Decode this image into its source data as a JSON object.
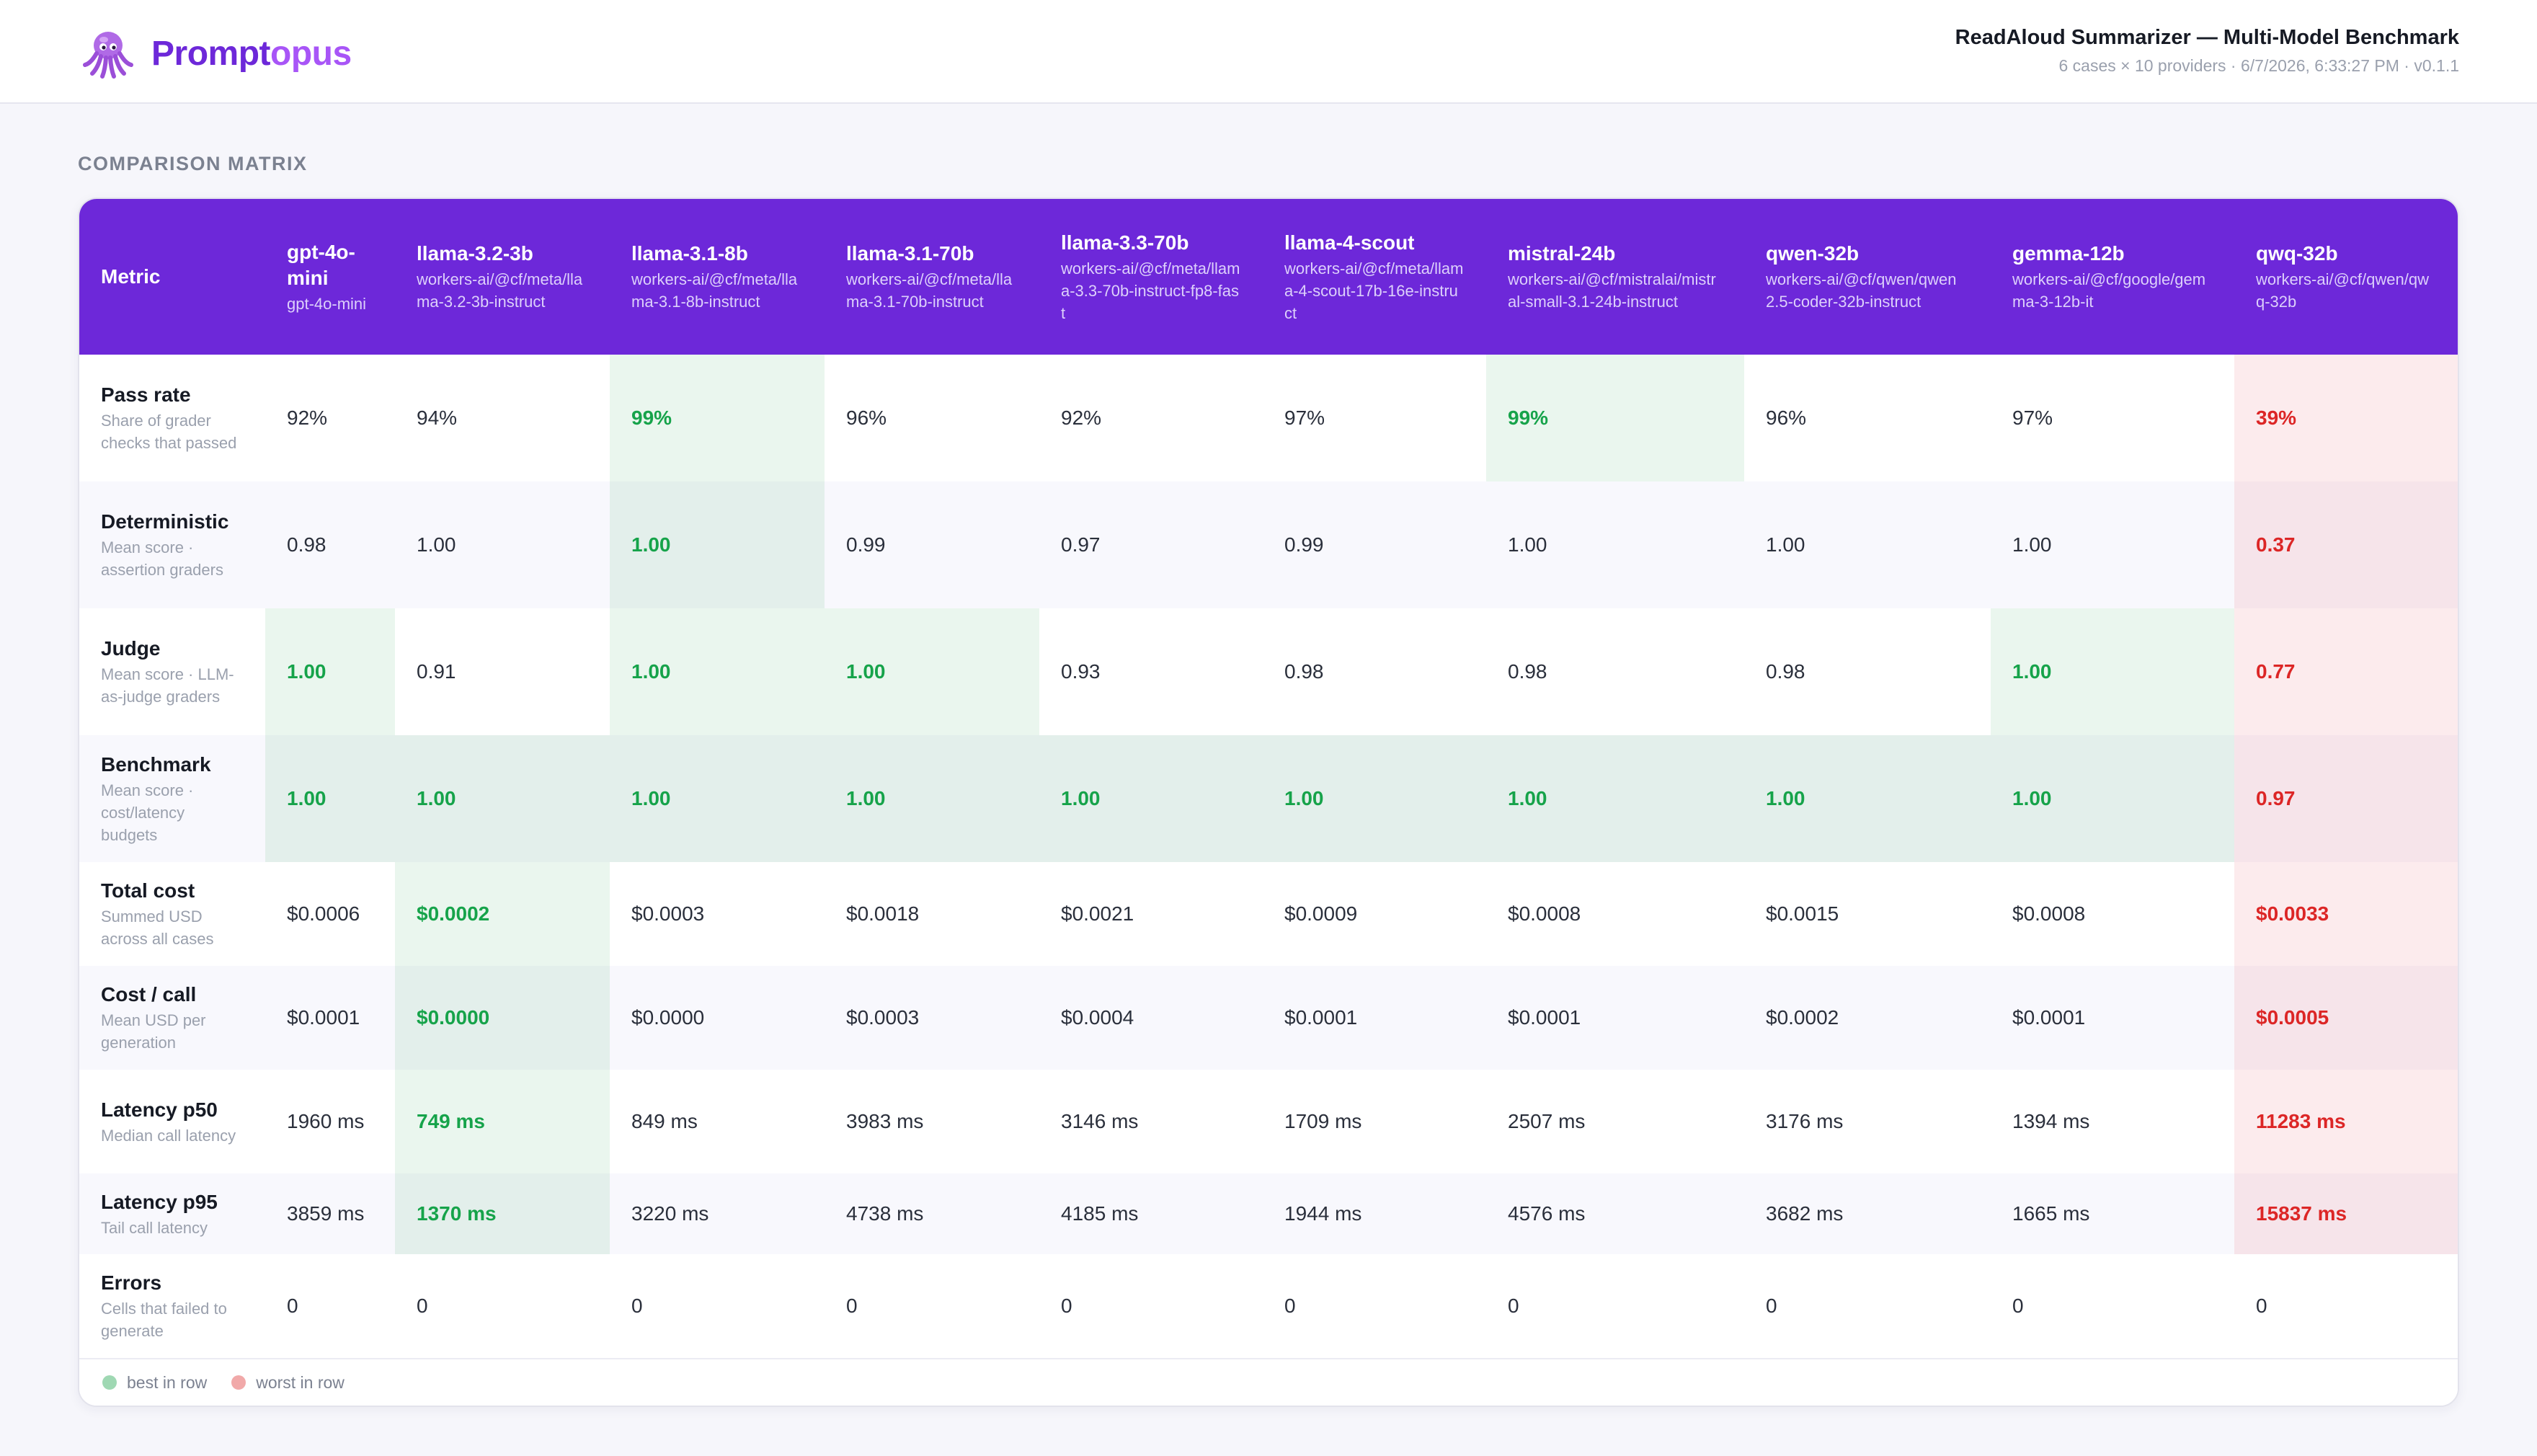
{
  "app": {
    "brand_part1": "Prompt",
    "brand_part2": "opus",
    "logo_icon": "octopus-icon",
    "report_title": "ReadAloud Summarizer — Multi-Model Benchmark",
    "report_meta": "6 cases × 10 providers · 6/7/2026, 6:33:27 PM · v0.1.1"
  },
  "section_title": "COMPARISON MATRIX",
  "matrix": {
    "metric_header": "Metric",
    "columns": [
      {
        "name": "gpt-4o-mini",
        "model": "gpt-4o-mini"
      },
      {
        "name": "llama-3.2-3b",
        "model": "workers-ai/@cf/meta/llama-3.2-3b-instruct"
      },
      {
        "name": "llama-3.1-8b",
        "model": "workers-ai/@cf/meta/llama-3.1-8b-instruct"
      },
      {
        "name": "llama-3.1-70b",
        "model": "workers-ai/@cf/meta/llama-3.1-70b-instruct"
      },
      {
        "name": "llama-3.3-70b",
        "model": "workers-ai/@cf/meta/llama-3.3-70b-instruct-fp8-fast"
      },
      {
        "name": "llama-4-scout",
        "model": "workers-ai/@cf/meta/llama-4-scout-17b-16e-instruct"
      },
      {
        "name": "mistral-24b",
        "model": "workers-ai/@cf/mistralai/mistral-small-3.1-24b-instruct"
      },
      {
        "name": "qwen-32b",
        "model": "workers-ai/@cf/qwen/qwen2.5-coder-32b-instruct"
      },
      {
        "name": "gemma-12b",
        "model": "workers-ai/@cf/google/gemma-3-12b-it"
      },
      {
        "name": "qwq-32b",
        "model": "workers-ai/@cf/qwen/qwq-32b"
      }
    ],
    "rows": [
      {
        "label": "Pass rate",
        "desc": "Share of grader checks that passed",
        "values": [
          "92%",
          "94%",
          "99%",
          "96%",
          "92%",
          "97%",
          "99%",
          "96%",
          "97%",
          "39%"
        ],
        "best": [
          2,
          6
        ],
        "worst": [
          9
        ]
      },
      {
        "label": "Deterministic",
        "desc": "Mean score · assertion graders",
        "values": [
          "0.98",
          "1.00",
          "1.00",
          "0.99",
          "0.97",
          "0.99",
          "1.00",
          "1.00",
          "1.00",
          "0.37"
        ],
        "best": [
          2
        ],
        "worst": [
          9
        ]
      },
      {
        "label": "Judge",
        "desc": "Mean score · LLM-as-judge graders",
        "values": [
          "1.00",
          "0.91",
          "1.00",
          "1.00",
          "0.93",
          "0.98",
          "0.98",
          "0.98",
          "1.00",
          "0.77"
        ],
        "best": [
          0,
          2,
          3,
          8
        ],
        "worst": [
          9
        ]
      },
      {
        "label": "Benchmark",
        "desc": "Mean score · cost/latency budgets",
        "values": [
          "1.00",
          "1.00",
          "1.00",
          "1.00",
          "1.00",
          "1.00",
          "1.00",
          "1.00",
          "1.00",
          "0.97"
        ],
        "best": [
          0,
          1,
          2,
          3,
          4,
          5,
          6,
          7,
          8
        ],
        "worst": [
          9
        ]
      },
      {
        "label": "Total cost",
        "desc": "Summed USD across all cases",
        "values": [
          "$0.0006",
          "$0.0002",
          "$0.0003",
          "$0.0018",
          "$0.0021",
          "$0.0009",
          "$0.0008",
          "$0.0015",
          "$0.0008",
          "$0.0033"
        ],
        "best": [
          1
        ],
        "worst": [
          9
        ]
      },
      {
        "label": "Cost / call",
        "desc": "Mean USD per generation",
        "values": [
          "$0.0001",
          "$0.0000",
          "$0.0000",
          "$0.0003",
          "$0.0004",
          "$0.0001",
          "$0.0001",
          "$0.0002",
          "$0.0001",
          "$0.0005"
        ],
        "best": [
          1
        ],
        "worst": [
          9
        ]
      },
      {
        "label": "Latency p50",
        "desc": "Median call latency",
        "values": [
          "1960 ms",
          "749 ms",
          "849 ms",
          "3983 ms",
          "3146 ms",
          "1709 ms",
          "2507 ms",
          "3176 ms",
          "1394 ms",
          "11283 ms"
        ],
        "best": [
          1
        ],
        "worst": [
          9
        ]
      },
      {
        "label": "Latency p95",
        "desc": "Tail call latency",
        "values": [
          "3859 ms",
          "1370 ms",
          "3220 ms",
          "4738 ms",
          "4185 ms",
          "1944 ms",
          "4576 ms",
          "3682 ms",
          "1665 ms",
          "15837 ms"
        ],
        "best": [
          1
        ],
        "worst": [
          9
        ]
      },
      {
        "label": "Errors",
        "desc": "Cells that failed to generate",
        "values": [
          "0",
          "0",
          "0",
          "0",
          "0",
          "0",
          "0",
          "0",
          "0",
          "0"
        ],
        "best": [],
        "worst": []
      }
    ]
  },
  "legend": {
    "best": "best in row",
    "worst": "worst in row"
  },
  "colors": {
    "accent": "#6d28d9",
    "best_text": "#16a34a",
    "worst_text": "#dc2626",
    "best_bg": "#eaf6ee",
    "worst_bg": "#fcebed"
  }
}
